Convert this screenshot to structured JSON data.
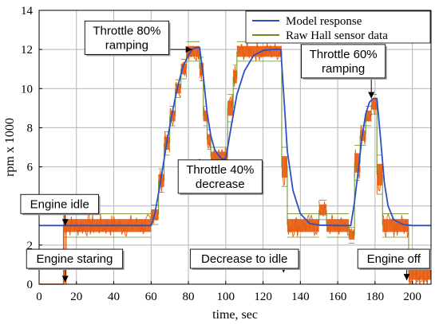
{
  "chart_data": {
    "type": "line",
    "title": "",
    "xlabel": "time, sec",
    "ylabel": "rpm x 1000",
    "xlim": [
      0,
      210
    ],
    "ylim": [
      0,
      14
    ],
    "x_ticks": [
      0,
      20,
      40,
      60,
      80,
      100,
      120,
      140,
      160,
      180,
      200
    ],
    "y_ticks": [
      0,
      2,
      4,
      6,
      8,
      10,
      12,
      14
    ],
    "grid": true,
    "legend_position": "top-right",
    "series": [
      {
        "name": "Model response",
        "color": "#2b4fc7",
        "x": [
          0,
          13,
          60,
          62,
          65,
          68,
          71,
          74,
          77,
          80,
          82,
          84,
          86,
          88,
          90,
          92,
          94,
          96,
          98,
          100,
          103,
          106,
          110,
          115,
          120,
          125,
          129.5,
          131,
          133,
          136,
          140,
          145,
          150,
          160,
          167,
          169,
          171,
          173,
          175,
          177,
          179,
          181,
          183,
          185,
          187,
          190,
          195,
          200,
          210
        ],
        "y": [
          3.0,
          3.0,
          3.0,
          3.6,
          5.2,
          7.0,
          8.6,
          10.0,
          11.1,
          11.7,
          12.0,
          12.1,
          12.1,
          10.6,
          8.8,
          7.6,
          6.9,
          6.6,
          6.4,
          6.4,
          8.1,
          9.7,
          10.9,
          11.7,
          11.95,
          12.0,
          12.0,
          9.8,
          6.8,
          4.8,
          3.6,
          3.1,
          3.02,
          3.0,
          3.0,
          4.2,
          5.8,
          7.5,
          8.7,
          9.3,
          9.5,
          9.5,
          7.4,
          5.2,
          4.0,
          3.3,
          3.05,
          3.0,
          3.0
        ]
      },
      {
        "name": "Raw Hall sensor data",
        "color": "#e85a0c",
        "outline_color": "#6b8e23",
        "segments": [
          {
            "x": [
              0,
              13
            ],
            "y": [
              0,
              0
            ],
            "spread": 0
          },
          {
            "x": [
              13,
              60
            ],
            "y": [
              3.0,
              3.0
            ],
            "spread": 1.2
          },
          {
            "x": [
              60,
              64
            ],
            "y": [
              3.2,
              3.9
            ],
            "spread": 1.0
          },
          {
            "x": [
              64,
              67
            ],
            "y": [
              5.0,
              5.6
            ],
            "spread": 1.2
          },
          {
            "x": [
              67,
              70
            ],
            "y": [
              7.0,
              7.4
            ],
            "spread": 1.2
          },
          {
            "x": [
              70,
              73
            ],
            "y": [
              8.4,
              8.8
            ],
            "spread": 1.0
          },
          {
            "x": [
              73,
              76
            ],
            "y": [
              9.8,
              10.2
            ],
            "spread": 0.9
          },
          {
            "x": [
              76,
              79
            ],
            "y": [
              10.8,
              11.2
            ],
            "spread": 1.0
          },
          {
            "x": [
              79,
              86
            ],
            "y": [
              11.9,
              11.9
            ],
            "spread": 1.0
          },
          {
            "x": [
              86,
              88
            ],
            "y": [
              11.0,
              11.0
            ],
            "spread": 1.2
          },
          {
            "x": [
              88,
              90
            ],
            "y": [
              8.6,
              8.6
            ],
            "spread": 1.0
          },
          {
            "x": [
              90,
              92
            ],
            "y": [
              7.4,
              7.4
            ],
            "spread": 1.0
          },
          {
            "x": [
              92,
              101
            ],
            "y": [
              6.5,
              6.5
            ],
            "spread": 1.0
          },
          {
            "x": [
              101,
              104
            ],
            "y": [
              9.0,
              9.0
            ],
            "spread": 1.4
          },
          {
            "x": [
              104,
              106
            ],
            "y": [
              10.6,
              10.6
            ],
            "spread": 1.2
          },
          {
            "x": [
              106,
              130
            ],
            "y": [
              11.9,
              11.9
            ],
            "spread": 1.0
          },
          {
            "x": [
              130,
              133
            ],
            "y": [
              6.0,
              6.0
            ],
            "spread": 2.0
          },
          {
            "x": [
              133,
              150
            ],
            "y": [
              3.0,
              3.0
            ],
            "spread": 1.2
          },
          {
            "x": [
              150,
              154
            ],
            "y": [
              3.8,
              3.8
            ],
            "spread": 1.0
          },
          {
            "x": [
              154,
              166
            ],
            "y": [
              3.0,
              3.0
            ],
            "spread": 1.2
          },
          {
            "x": [
              166,
              169
            ],
            "y": [
              2.5,
              2.5
            ],
            "spread": 0.8
          },
          {
            "x": [
              169,
              172
            ],
            "y": [
              6.2,
              6.2
            ],
            "spread": 1.8
          },
          {
            "x": [
              172,
              175
            ],
            "y": [
              7.6,
              7.6
            ],
            "spread": 1.0
          },
          {
            "x": [
              175,
              178
            ],
            "y": [
              8.6,
              8.6
            ],
            "spread": 1.0
          },
          {
            "x": [
              178,
              181
            ],
            "y": [
              9.2,
              9.2
            ],
            "spread": 1.0
          },
          {
            "x": [
              181,
              184
            ],
            "y": [
              5.6,
              5.6
            ],
            "spread": 2.0
          },
          {
            "x": [
              184,
              198
            ],
            "y": [
              3.0,
              3.0
            ],
            "spread": 1.2
          },
          {
            "x": [
              198,
              210
            ],
            "y": [
              0.5,
              0.5
            ],
            "spread": 1.0
          }
        ]
      }
    ],
    "annotations": [
      {
        "id": "throttle80",
        "text": [
          "Throttle 80%",
          "ramping"
        ],
        "target": [
          82,
          12.0
        ],
        "label_at": [
          47,
          12.6
        ]
      },
      {
        "id": "throttle40",
        "text": [
          "Throttle 40%",
          "decrease"
        ],
        "target": [
          86,
          6.4
        ],
        "label_at": [
          97,
          5.5
        ]
      },
      {
        "id": "throttle60",
        "text": [
          "Throttle 60%",
          "ramping"
        ],
        "target": [
          178,
          9.5
        ],
        "label_at": [
          163,
          11.4
        ]
      },
      {
        "id": "engineidle",
        "text": [
          "Engine idle"
        ],
        "target": [
          14,
          3.0
        ],
        "label_at": [
          11,
          4.1
        ]
      },
      {
        "id": "enginestart",
        "text": [
          "Engine staring"
        ],
        "target": [
          14,
          0.1
        ],
        "label_at": [
          19,
          1.3
        ]
      },
      {
        "id": "decreaseidle",
        "text": [
          "Decrease to idle"
        ],
        "target": [
          131,
          0.6
        ],
        "label_at": [
          110,
          1.3
        ]
      },
      {
        "id": "engineoff",
        "text": [
          "Engine off"
        ],
        "target": [
          197,
          0.2
        ],
        "label_at": [
          190,
          1.3
        ]
      }
    ]
  }
}
